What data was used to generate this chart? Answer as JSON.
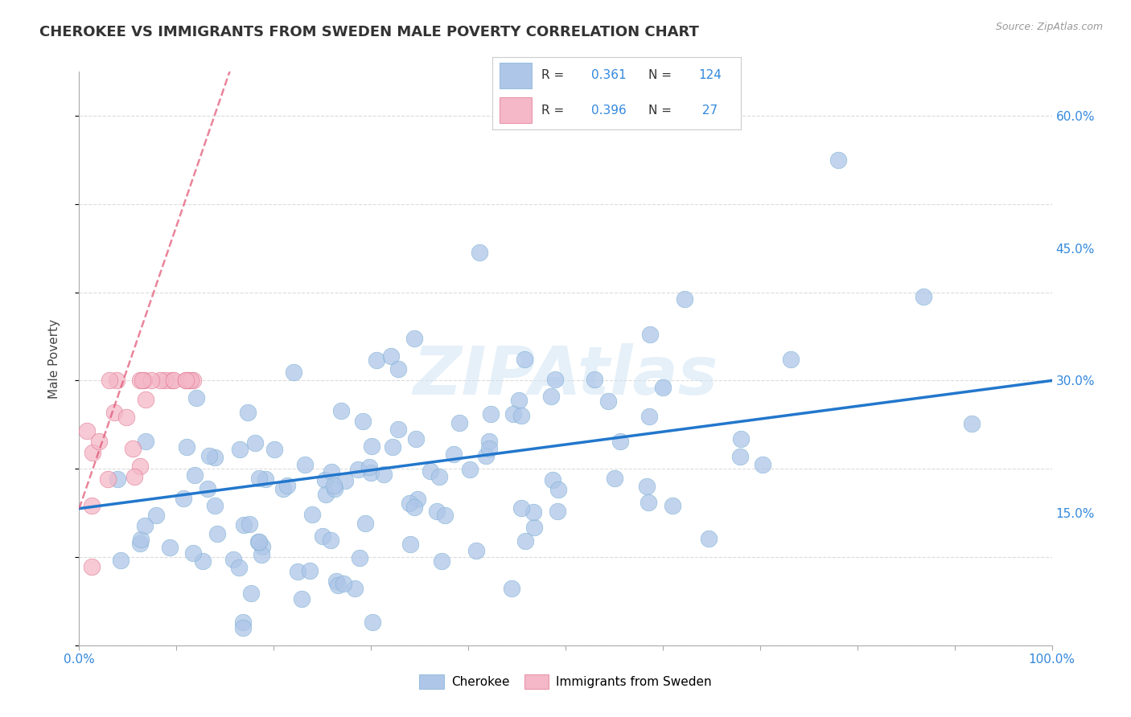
{
  "title": "CHEROKEE VS IMMIGRANTS FROM SWEDEN MALE POVERTY CORRELATION CHART",
  "source": "Source: ZipAtlas.com",
  "ylabel": "Male Poverty",
  "watermark": "ZIPAtlas",
  "cherokee_R": 0.361,
  "cherokee_N": 124,
  "sweden_R": 0.396,
  "sweden_N": 27,
  "cherokee_color": "#aec6e8",
  "cherokee_edge_color": "#7bafd4",
  "sweden_color": "#f4b8c8",
  "sweden_edge_color": "#e0708a",
  "cherokee_line_color": "#2277cc",
  "sweden_line_color": "#e05070",
  "background_color": "#ffffff",
  "grid_color": "#cccccc",
  "title_color": "#333333",
  "axis_label_color": "#444444",
  "tick_label_color_blue": "#3388dd",
  "xlim": [
    0.0,
    1.0
  ],
  "ylim": [
    0.0,
    0.65
  ],
  "cherokee_slope": 0.145,
  "cherokee_intercept": 0.155,
  "sweden_slope": 3.2,
  "sweden_intercept": 0.155,
  "sweden_line_x_start": 0.0,
  "sweden_line_x_end": 0.17
}
